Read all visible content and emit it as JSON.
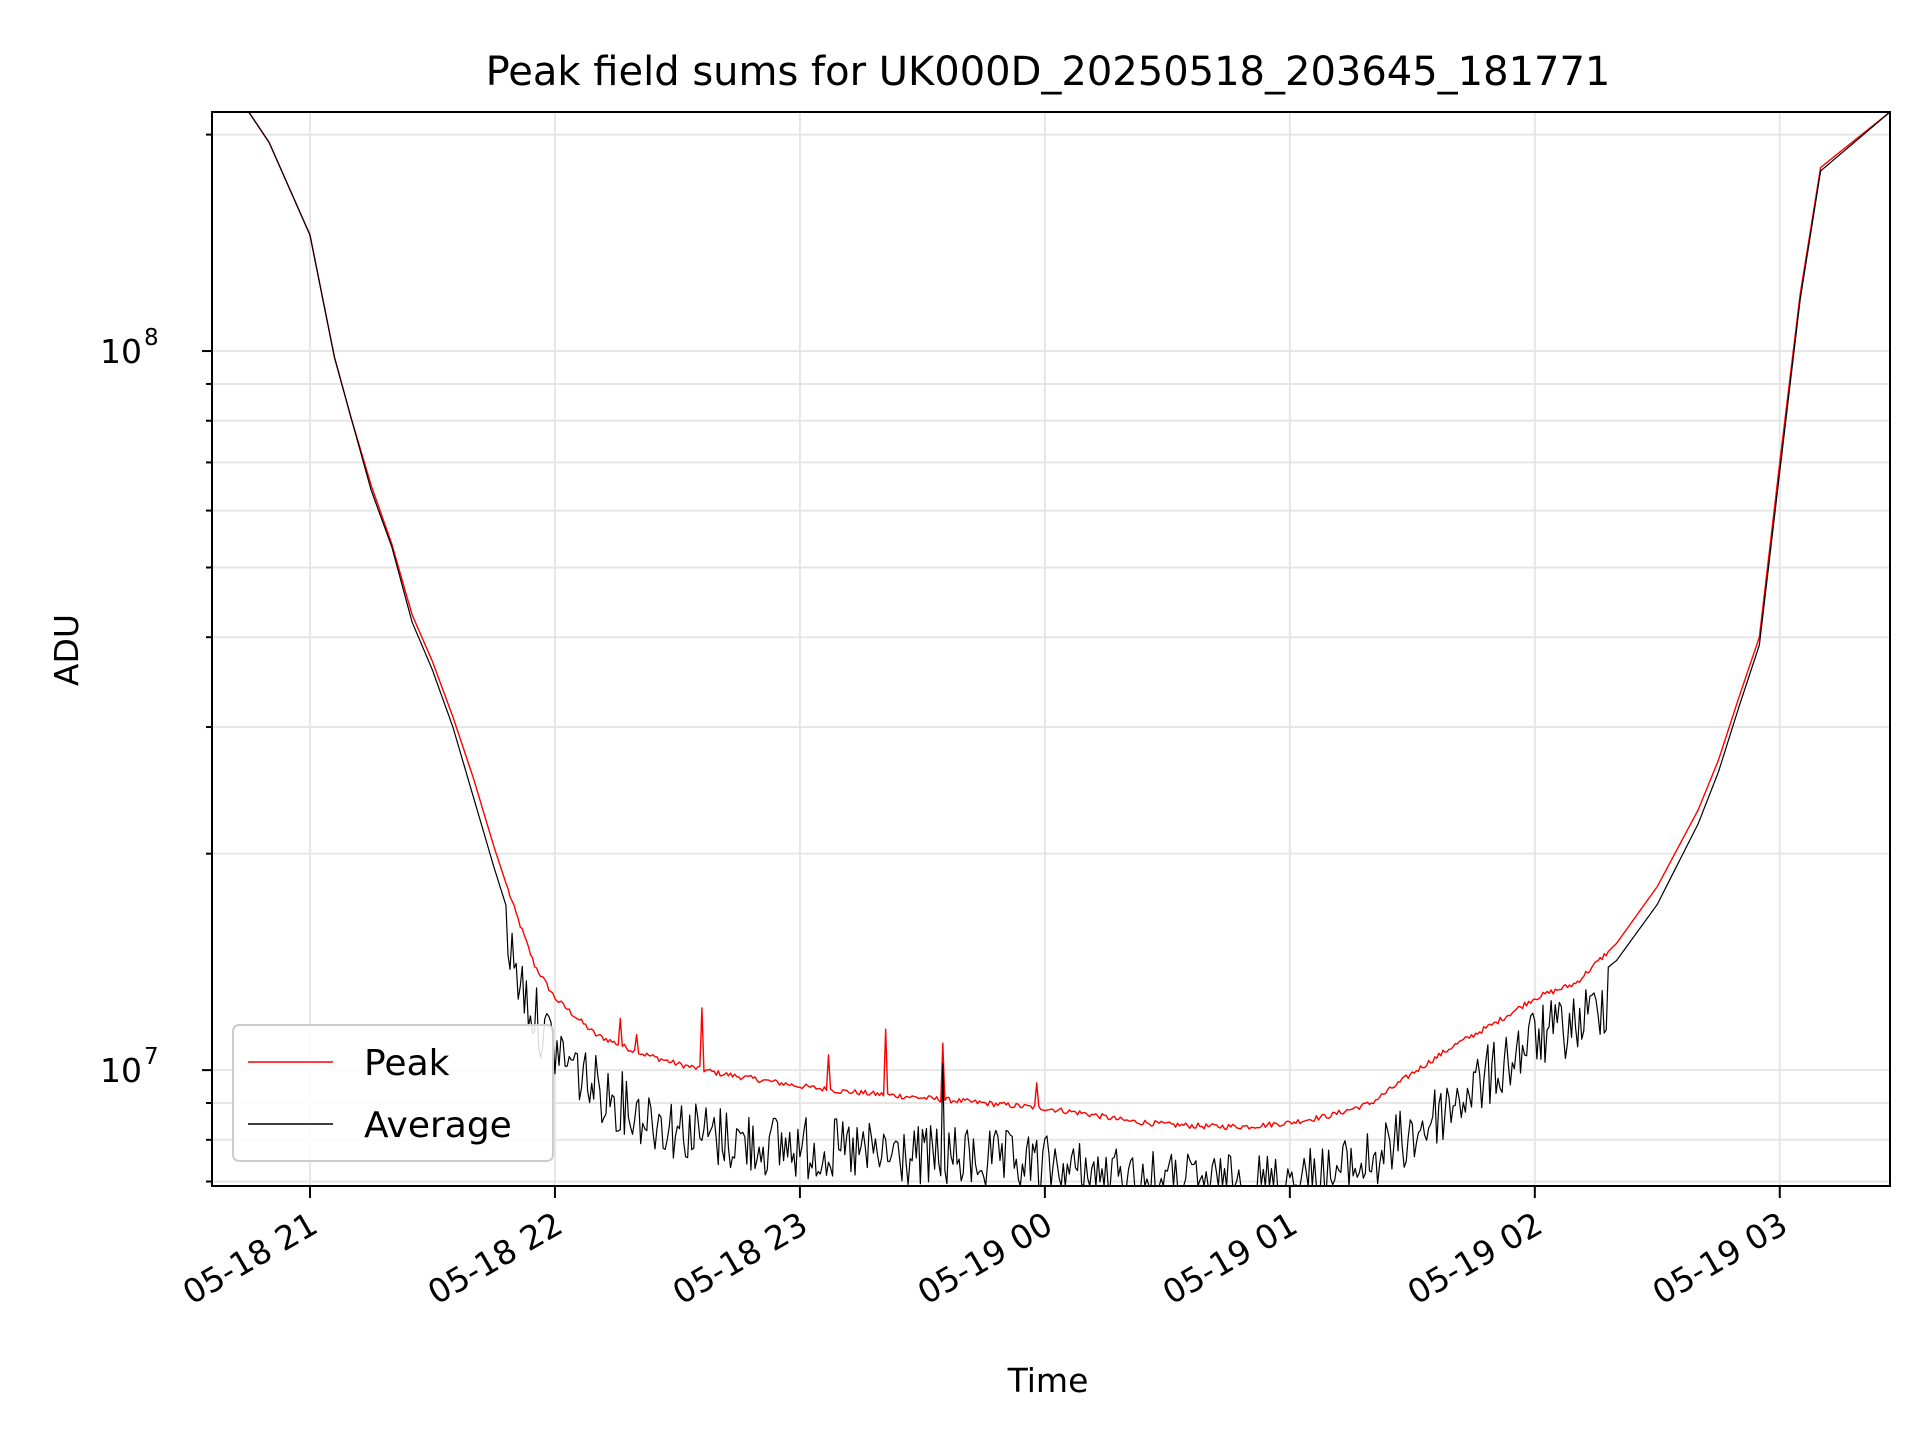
{
  "chart_data": {
    "type": "line",
    "title": "Peak field sums for UK000D_20250518_203645_181771",
    "xlabel": "Time",
    "ylabel": "ADU",
    "x_scale": "time",
    "y_scale": "log",
    "xlim": [
      "2025-05-18 20:36",
      "2025-05-19 03:27"
    ],
    "ylim": [
      6900000,
      215000000
    ],
    "grid": true,
    "legend_position": "lower-left",
    "x_ticks": [
      "05-18 21",
      "05-18 22",
      "05-18 23",
      "05-19 00",
      "05-19 01",
      "05-19 02",
      "05-19 03"
    ],
    "y_ticks": [
      {
        "base": "10",
        "exp": "7",
        "value": 10000000
      },
      {
        "base": "10",
        "exp": "8",
        "value": 100000000
      }
    ],
    "x": [
      "2025-05-18 20:36",
      "2025-05-18 20:45",
      "2025-05-18 20:50",
      "2025-05-18 21:00",
      "2025-05-18 21:06",
      "2025-05-18 21:10",
      "2025-05-18 21:15",
      "2025-05-18 21:20",
      "2025-05-18 21:25",
      "2025-05-18 21:30",
      "2025-05-18 21:35",
      "2025-05-18 21:40",
      "2025-05-18 21:45",
      "2025-05-18 21:50",
      "2025-05-18 21:55",
      "2025-05-18 22:00",
      "2025-05-18 22:10",
      "2025-05-18 22:20",
      "2025-05-18 22:30",
      "2025-05-18 22:40",
      "2025-05-18 22:50",
      "2025-05-18 23:00",
      "2025-05-18 23:10",
      "2025-05-18 23:20",
      "2025-05-18 23:30",
      "2025-05-18 23:40",
      "2025-05-18 23:50",
      "2025-05-19 00:00",
      "2025-05-19 00:10",
      "2025-05-19 00:20",
      "2025-05-19 00:30",
      "2025-05-19 00:40",
      "2025-05-19 00:50",
      "2025-05-19 01:00",
      "2025-05-19 01:10",
      "2025-05-19 01:20",
      "2025-05-19 01:30",
      "2025-05-19 01:40",
      "2025-05-19 01:50",
      "2025-05-19 02:00",
      "2025-05-19 02:10",
      "2025-05-19 02:20",
      "2025-05-19 02:30",
      "2025-05-19 02:40",
      "2025-05-19 02:45",
      "2025-05-19 02:50",
      "2025-05-19 02:55",
      "2025-05-19 03:00",
      "2025-05-19 03:05",
      "2025-05-19 03:10",
      "2025-05-19 03:27"
    ],
    "series": [
      {
        "name": "Peak",
        "color": "#ff0000",
        "values": [
          215000000,
          215000000,
          195000000,
          145000000,
          98000000,
          81000000,
          65000000,
          54000000,
          43000000,
          37000000,
          31000000,
          25500000,
          20500000,
          16800000,
          14000000,
          12600000,
          11200000,
          10600000,
          10200000,
          9900000,
          9700000,
          9500000,
          9350000,
          9250000,
          9150000,
          9050000,
          8950000,
          8850000,
          8700000,
          8500000,
          8400000,
          8350000,
          8350000,
          8450000,
          8650000,
          9000000,
          9900000,
          10800000,
          11600000,
          12600000,
          13200000,
          15000000,
          18000000,
          23000000,
          27000000,
          33000000,
          40000000,
          70000000,
          120000000,
          180000000,
          215000000
        ],
        "spikes": [
          {
            "x": "2025-05-18 22:16",
            "y": 11800000
          },
          {
            "x": "2025-05-18 22:20",
            "y": 11200000
          },
          {
            "x": "2025-05-18 22:36",
            "y": 12200000
          },
          {
            "x": "2025-05-18 23:07",
            "y": 10500000
          },
          {
            "x": "2025-05-18 23:21",
            "y": 11400000
          },
          {
            "x": "2025-05-18 23:35",
            "y": 10900000
          },
          {
            "x": "2025-05-18 23:58",
            "y": 9600000
          }
        ]
      },
      {
        "name": "Average",
        "color": "#000000",
        "values": [
          215000000,
          215000000,
          195000000,
          145000000,
          98000000,
          81000000,
          64000000,
          53500000,
          42000000,
          36000000,
          30000000,
          24000000,
          19200000,
          15600000,
          13200000,
          11900000,
          10500000,
          9700000,
          9200000,
          8950000,
          8750000,
          8650000,
          8550000,
          8450000,
          8400000,
          8350000,
          8250000,
          8150000,
          7950000,
          7800000,
          7700000,
          7650000,
          7650000,
          7800000,
          7900000,
          8300000,
          9000000,
          10000000,
          11000000,
          12300000,
          12800000,
          14200000,
          17000000,
          22000000,
          26000000,
          32000000,
          39000000,
          68000000,
          118000000,
          178000000,
          215000000
        ],
        "spikes": [
          {
            "x": "2025-05-18 23:35",
            "y": 10200000
          }
        ]
      }
    ]
  }
}
